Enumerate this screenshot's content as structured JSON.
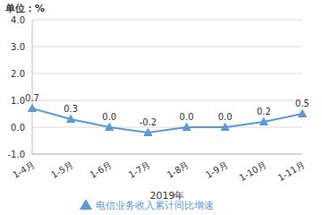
{
  "chart_data": {
    "type": "line",
    "y_label": "单位：%",
    "x_label": "2019年",
    "categories": [
      "1-4月",
      "1-5月",
      "1-6月",
      "1-7月",
      "1-8月",
      "1-9月",
      "1-10月",
      "1-11月"
    ],
    "series": [
      {
        "name": "电信业务收入累计同比增速",
        "color": "#5b9bd5",
        "marker": "triangle",
        "values": [
          0.7,
          0.3,
          0.0,
          -0.2,
          0.0,
          0.0,
          0.2,
          0.5
        ],
        "value_labels": [
          "0.7",
          "0.3",
          "0.0",
          "-0.2",
          "0.0",
          "0.0",
          "0.2",
          "0.5"
        ]
      }
    ],
    "ylim": [
      -1,
      4
    ],
    "yticks": [
      {
        "value": -1,
        "label": "-1.0"
      },
      {
        "value": 0,
        "label": "0.0"
      },
      {
        "value": 1,
        "label": "1.0"
      },
      {
        "value": 2,
        "label": "2.0"
      },
      {
        "value": 3,
        "label": "3.0"
      },
      {
        "value": 4,
        "label": "4.0"
      }
    ],
    "grid": true,
    "legend": "bottom",
    "data_labels": true
  }
}
